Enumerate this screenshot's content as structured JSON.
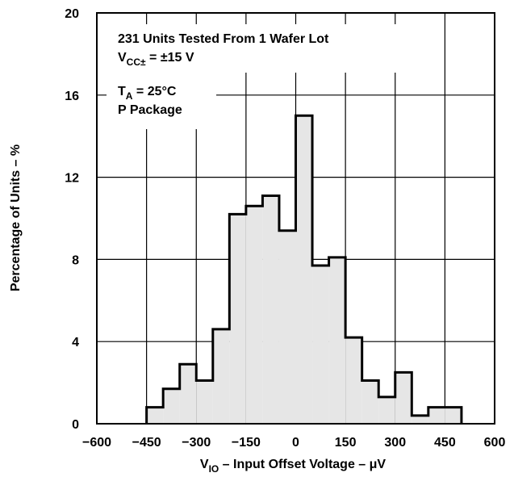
{
  "chart_data": {
    "type": "bar",
    "histogram": true,
    "title": "",
    "xlabel": {
      "main": "V",
      "sub": "IO",
      "rest": " – Input Offset Voltage – μV"
    },
    "ylabel": "Percentage of Units – %",
    "xlim": [
      -600,
      600
    ],
    "ylim": [
      0,
      20
    ],
    "x_ticks": [
      "−600",
      "−450",
      "−300",
      "−150",
      "0",
      "150",
      "300",
      "450",
      "600"
    ],
    "y_ticks": [
      "0",
      "4",
      "8",
      "12",
      "16",
      "20"
    ],
    "x_tick_values": [
      -600,
      -450,
      -300,
      -150,
      0,
      150,
      300,
      450,
      600
    ],
    "y_tick_values": [
      0,
      4,
      8,
      12,
      16,
      20
    ],
    "grid": true,
    "bin_width": 50,
    "bins": [
      {
        "start": -450,
        "end": -400,
        "value": 0.8
      },
      {
        "start": -400,
        "end": -350,
        "value": 1.7
      },
      {
        "start": -350,
        "end": -300,
        "value": 2.9
      },
      {
        "start": -300,
        "end": -250,
        "value": 2.1
      },
      {
        "start": -250,
        "end": -200,
        "value": 4.6
      },
      {
        "start": -200,
        "end": -150,
        "value": 10.2
      },
      {
        "start": -150,
        "end": -100,
        "value": 10.6
      },
      {
        "start": -100,
        "end": -50,
        "value": 11.1
      },
      {
        "start": -50,
        "end": 0,
        "value": 9.4
      },
      {
        "start": 0,
        "end": 50,
        "value": 15.0
      },
      {
        "start": 50,
        "end": 100,
        "value": 7.7
      },
      {
        "start": 100,
        "end": 150,
        "value": 8.1
      },
      {
        "start": 150,
        "end": 200,
        "value": 4.2
      },
      {
        "start": 200,
        "end": 250,
        "value": 2.1
      },
      {
        "start": 250,
        "end": 300,
        "value": 1.3
      },
      {
        "start": 300,
        "end": 350,
        "value": 2.5
      },
      {
        "start": 350,
        "end": 400,
        "value": 0.4
      },
      {
        "start": 400,
        "end": 450,
        "value": 0.8
      },
      {
        "start": 450,
        "end": 500,
        "value": 0.8
      }
    ],
    "fill_color": "#e6e6e6",
    "line_color": "#000000",
    "annotations": {
      "line1": "231 Units Tested From 1 Wafer Lot",
      "line2_main": "V",
      "line2_sub": "CC±",
      "line2_rest": " = ±15 V",
      "line3_main": "T",
      "line3_sub": "A",
      "line3_rest": " = 25°C",
      "line4": "P Package"
    }
  }
}
